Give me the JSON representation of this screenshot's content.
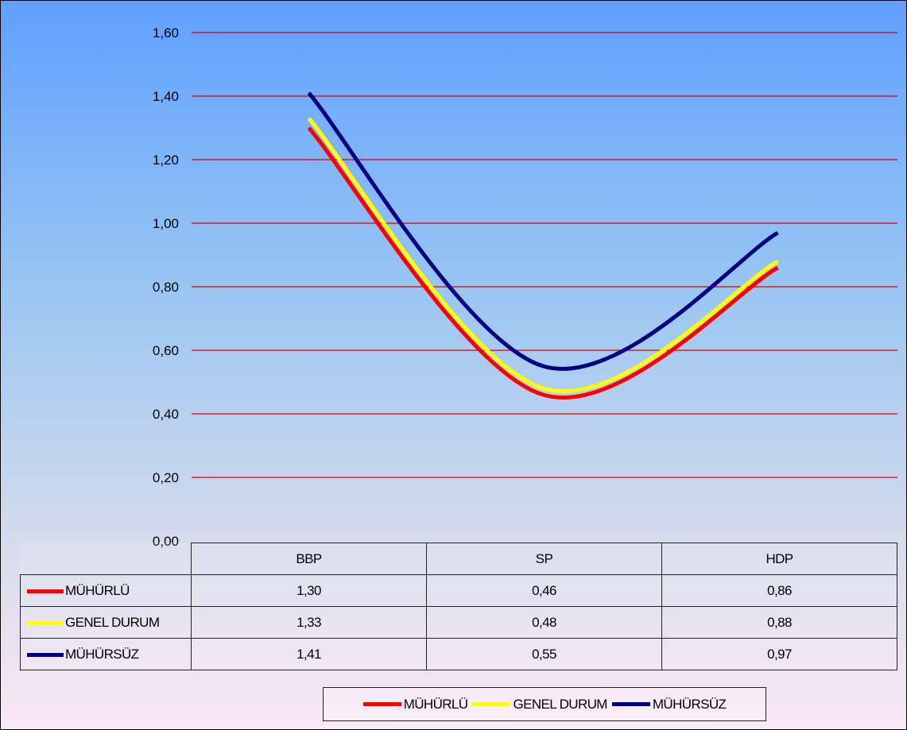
{
  "chart_data": {
    "type": "line",
    "categories": [
      "BBP",
      "SP",
      "HDP"
    ],
    "series": [
      {
        "name": "MÜHÜRLÜ",
        "values": [
          1.3,
          0.46,
          0.86
        ],
        "color": "#ff0000",
        "values_label": [
          "1,30",
          "0,46",
          "0,86"
        ]
      },
      {
        "name": "GENEL DURUM",
        "values": [
          1.33,
          0.48,
          0.88
        ],
        "color": "#ffff00",
        "values_label": [
          "1,33",
          "0,48",
          "0,88"
        ]
      },
      {
        "name": "MÜHÜRSÜZ",
        "values": [
          1.41,
          0.55,
          0.97
        ],
        "color": "#000080",
        "values_label": [
          "1,41",
          "0,55",
          "0,97"
        ]
      }
    ],
    "ylim": [
      0,
      1.6
    ],
    "yticks": [
      0,
      0.2,
      0.4,
      0.6,
      0.8,
      1.0,
      1.2,
      1.4,
      1.6
    ],
    "ytick_labels": [
      "0,00",
      "0,20",
      "0,40",
      "0,60",
      "0,80",
      "1,00",
      "1,20",
      "1,40",
      "1,60"
    ],
    "grid": true,
    "gridline_color": "#d80000",
    "legend": "bottom",
    "data_table": true,
    "smooth": true
  }
}
